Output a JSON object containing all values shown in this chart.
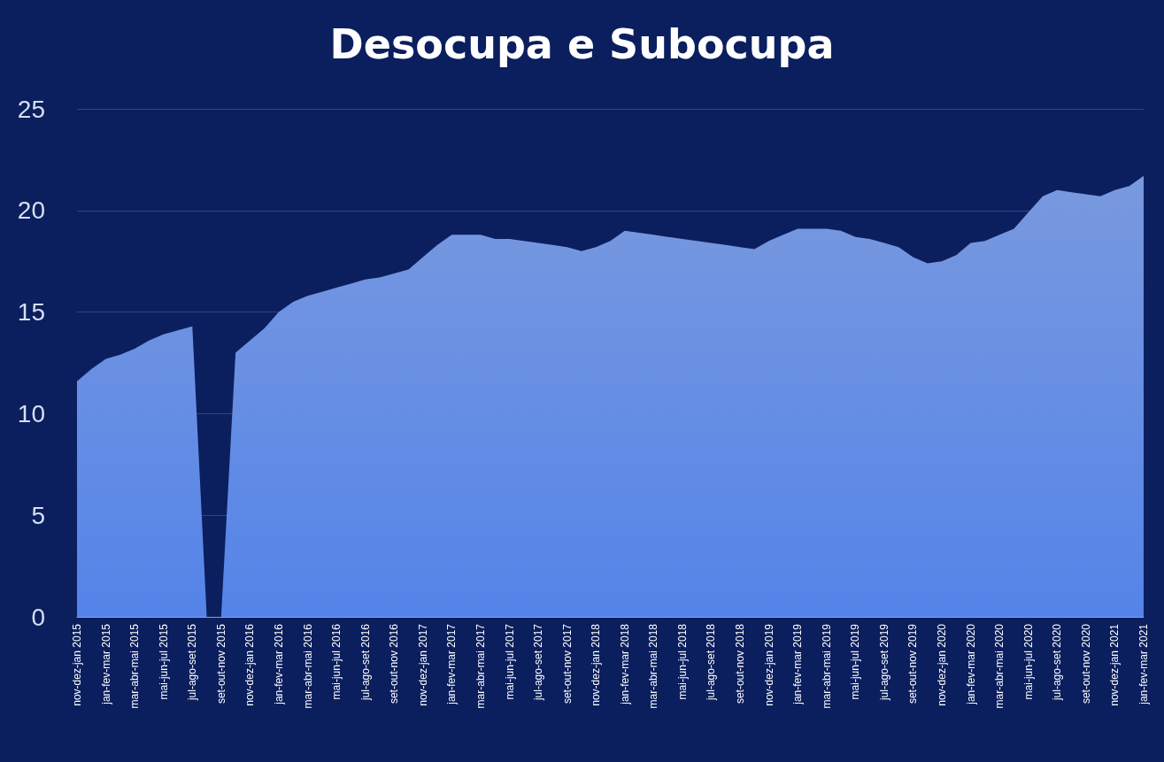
{
  "chart_data": {
    "type": "area",
    "title": "Desocupa e Subocupa",
    "categories": [
      "nov-dez-jan 2015",
      null,
      "jan-fev-mar 2015",
      null,
      "mar-abr-mai 2015",
      null,
      "mai-jun-jul 2015",
      null,
      "jul-ago-set 2015",
      null,
      "set-out-nov 2015",
      null,
      "nov-dez-jan 2016",
      null,
      "jan-fev-mar 2016",
      null,
      "mar-abr-mai 2016",
      null,
      "mai-jun-jul 2016",
      null,
      "jul-ago-set 2016",
      null,
      "set-out-nov 2016",
      null,
      "nov-dez-jan 2017",
      null,
      "jan-fev-mar 2017",
      null,
      "mar-abr-mai 2017",
      null,
      "mai-jun-jul 2017",
      null,
      "jul-ago-set 2017",
      null,
      "set-out-nov 2017",
      null,
      "nov-dez-jan 2018",
      null,
      "jan-fev-mar 2018",
      null,
      "mar-abr-mai 2018",
      null,
      "mai-jun-jul 2018",
      null,
      "jul-ago-set 2018",
      null,
      "set-out-nov 2018",
      null,
      "nov-dez-jan 2019",
      null,
      "jan-fev-mar 2019",
      null,
      "mar-abr-mai 2019",
      null,
      "mai-jun-jul 2019",
      null,
      "jul-ago-set 2019",
      null,
      "set-out-nov 2019",
      null,
      "nov-dez-jan 2020",
      null,
      "jan-fev-mar 2020",
      null,
      "mar-abr-mai 2020",
      null,
      "mai-jun-jul 2020",
      null,
      "jul-ago-set 2020",
      null,
      "set-out-nov 2020",
      null,
      "nov-dez-jan 2021",
      null,
      "jan-fev-mar 2021"
    ],
    "values": [
      11.6,
      12.2,
      12.7,
      12.9,
      13.2,
      13.6,
      13.9,
      14.1,
      14.3,
      0,
      0,
      13.0,
      13.6,
      14.2,
      15.0,
      15.5,
      15.8,
      16.0,
      16.2,
      16.4,
      16.6,
      16.7,
      16.9,
      17.1,
      17.7,
      18.3,
      18.8,
      18.8,
      18.8,
      18.6,
      18.6,
      18.5,
      18.4,
      18.3,
      18.2,
      18.0,
      18.2,
      18.5,
      19.0,
      18.9,
      18.8,
      18.7,
      18.6,
      18.5,
      18.4,
      18.3,
      18.2,
      18.1,
      18.5,
      18.8,
      19.1,
      19.1,
      19.1,
      19.0,
      18.7,
      18.6,
      18.4,
      18.2,
      17.7,
      17.4,
      17.5,
      17.8,
      18.4,
      18.5,
      18.8,
      19.1,
      19.9,
      20.7,
      21.0,
      20.9,
      20.8,
      20.7,
      21.0,
      21.2,
      21.7
    ],
    "color": "#4d78d4",
    "ylim": [
      0,
      25
    ],
    "yticks": [
      0,
      5,
      10,
      15,
      20,
      25
    ],
    "grid": "y",
    "marker": "none"
  }
}
